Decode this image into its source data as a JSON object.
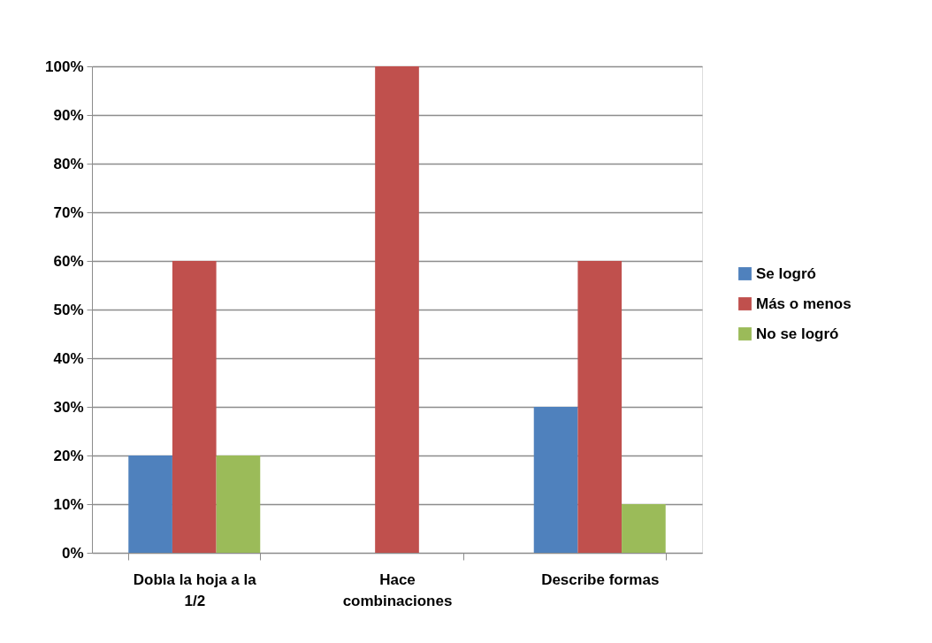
{
  "chart_data": {
    "type": "bar",
    "categories": [
      "Dobla la hoja a la 1/2",
      "Hace combinaciones",
      "Describe formas"
    ],
    "series": [
      {
        "name": "Se logró",
        "color": "#4f81bd",
        "values": [
          20,
          0,
          30
        ]
      },
      {
        "name": "Más o menos",
        "color": "#c0504d",
        "values": [
          60,
          100,
          60
        ]
      },
      {
        "name": "No se logró",
        "color": "#9bbb59",
        "values": [
          20,
          0,
          10
        ]
      }
    ],
    "ylim": [
      0,
      100
    ],
    "yticks": [
      {
        "value": 0,
        "label": "0%"
      },
      {
        "value": 10,
        "label": "10%"
      },
      {
        "value": 20,
        "label": "20%"
      },
      {
        "value": 30,
        "label": "30%"
      },
      {
        "value": 40,
        "label": "40%"
      },
      {
        "value": 50,
        "label": "50%"
      },
      {
        "value": 60,
        "label": "60%"
      },
      {
        "value": 70,
        "label": "70%"
      },
      {
        "value": 80,
        "label": "80%"
      },
      {
        "value": 90,
        "label": "90%"
      },
      {
        "value": 100,
        "label": "100%"
      }
    ],
    "grid": "y",
    "legend": "right"
  }
}
